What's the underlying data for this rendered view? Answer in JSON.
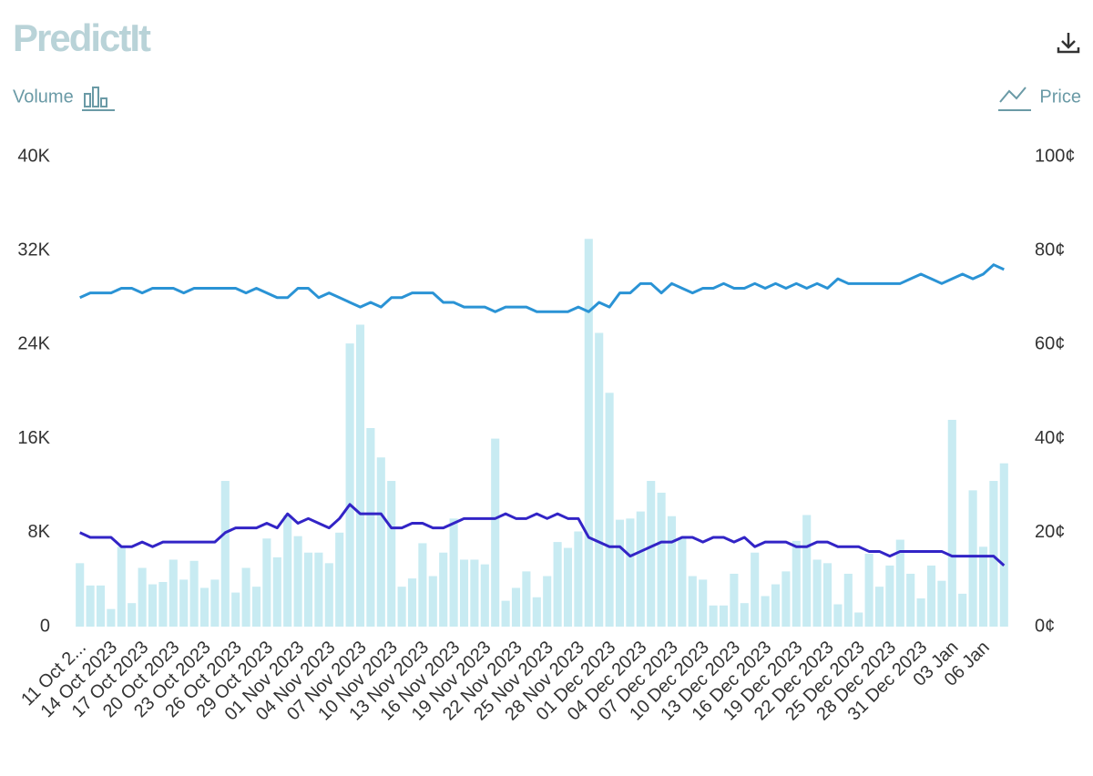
{
  "header": {
    "logo": "PredictIt"
  },
  "chart_data": {
    "type": "combo",
    "ylabel": "Volume",
    "y2label": "Price",
    "categories": [
      "11 Oct 2...",
      null,
      null,
      "14 Oct 2023",
      null,
      null,
      "17 Oct 2023",
      null,
      null,
      "20 Oct 2023",
      null,
      null,
      "23 Oct 2023",
      null,
      null,
      "26 Oct 2023",
      null,
      null,
      "29 Oct 2023",
      null,
      null,
      "01 Nov 2023",
      null,
      null,
      "04 Nov 2023",
      null,
      null,
      "07 Nov 2023",
      null,
      null,
      "10 Nov 2023",
      null,
      null,
      "13 Nov 2023",
      null,
      null,
      "16 Nov 2023",
      null,
      null,
      "19 Nov 2023",
      null,
      null,
      "22 Nov 2023",
      null,
      null,
      "25 Nov 2023",
      null,
      null,
      "28 Nov 2023",
      null,
      null,
      "01 Dec 2023",
      null,
      null,
      "04 Dec 2023",
      null,
      null,
      "07 Dec 2023",
      null,
      null,
      "10 Dec 2023",
      null,
      null,
      "13 Dec 2023",
      null,
      null,
      "16 Dec 2023",
      null,
      null,
      "19 Dec 2023",
      null,
      null,
      "22 Dec 2023",
      null,
      null,
      "25 Dec 2023",
      null,
      null,
      "28 Dec 2023",
      null,
      null,
      "31 Dec 2023",
      null,
      null,
      "03 Jan",
      null,
      null,
      "06 Jan",
      null,
      null
    ],
    "series": [
      {
        "type": "bar",
        "color": "#c8ebf2",
        "values": [
          5400,
          3500,
          3500,
          1500,
          6800,
          2000,
          5000,
          3600,
          3800,
          5700,
          4000,
          5600,
          3300,
          4000,
          12400,
          2900,
          5000,
          3400,
          7500,
          5900,
          9500,
          7700,
          6300,
          6300,
          5400,
          8000,
          24100,
          25700,
          16900,
          14400,
          12400,
          3400,
          4100,
          7100,
          4300,
          6300,
          9200,
          5700,
          5700,
          5300,
          16000,
          2200,
          3300,
          4700,
          2500,
          4300,
          7200,
          6700,
          8100,
          33000,
          25000,
          19900,
          9100,
          9200,
          9800,
          12400,
          11400,
          9400,
          7500,
          4300,
          4000,
          1800,
          1800,
          4500,
          2000,
          6300,
          2600,
          3600,
          4700,
          7300,
          9500,
          5700,
          5400,
          1900,
          4500,
          1200,
          6200,
          3400,
          5200,
          7400,
          4500,
          2400,
          5200,
          3900,
          17600,
          2800,
          11600,
          6800,
          12400,
          13900
        ]
      },
      {
        "type": "line",
        "axis": "y2",
        "color": "#2a93d5",
        "values": [
          70,
          71,
          71,
          71,
          72,
          72,
          71,
          72,
          72,
          72,
          71,
          72,
          72,
          72,
          72,
          72,
          71,
          72,
          71,
          70,
          70,
          72,
          72,
          70,
          71,
          70,
          69,
          68,
          69,
          68,
          70,
          70,
          71,
          71,
          71,
          69,
          69,
          68,
          68,
          68,
          67,
          68,
          68,
          68,
          67,
          67,
          67,
          67,
          68,
          67,
          69,
          68,
          71,
          71,
          73,
          73,
          71,
          73,
          72,
          71,
          72,
          72,
          73,
          72,
          72,
          73,
          72,
          73,
          72,
          73,
          72,
          73,
          72,
          74,
          73,
          73,
          73,
          73,
          73,
          73,
          74,
          75,
          74,
          73,
          74,
          75,
          74,
          75,
          77,
          76
        ]
      },
      {
        "type": "line",
        "axis": "y2",
        "color": "#3224c6",
        "values": [
          20,
          19,
          19,
          19,
          17,
          17,
          18,
          17,
          18,
          18,
          18,
          18,
          18,
          18,
          20,
          21,
          21,
          21,
          22,
          21,
          24,
          22,
          23,
          22,
          21,
          23,
          26,
          24,
          24,
          24,
          21,
          21,
          22,
          22,
          21,
          21,
          22,
          23,
          23,
          23,
          23,
          24,
          23,
          23,
          24,
          23,
          24,
          23,
          23,
          19,
          18,
          17,
          17,
          15,
          16,
          17,
          18,
          18,
          19,
          19,
          18,
          19,
          19,
          18,
          19,
          17,
          18,
          18,
          18,
          17,
          17,
          18,
          18,
          17,
          17,
          17,
          16,
          16,
          15,
          16,
          16,
          16,
          16,
          16,
          15,
          15,
          15,
          15,
          15,
          13
        ]
      }
    ],
    "ylim": [
      0,
      40000
    ],
    "yticks": [
      0,
      {
        "value": 8000,
        "label": "8K"
      },
      {
        "value": 16000,
        "label": "16K"
      },
      {
        "value": 24000,
        "label": "24K"
      },
      {
        "value": 32000,
        "label": "32K"
      },
      {
        "value": 40000,
        "label": "40K"
      }
    ],
    "y2lim": [
      0,
      100
    ],
    "y2ticks": [
      {
        "value": 0,
        "label": "0¢"
      },
      {
        "value": 20,
        "label": "20¢"
      },
      {
        "value": 40,
        "label": "40¢"
      },
      {
        "value": 60,
        "label": "60¢"
      },
      {
        "value": 80,
        "label": "80¢"
      },
      {
        "value": 100,
        "label": "100¢"
      }
    ],
    "grid": false
  }
}
